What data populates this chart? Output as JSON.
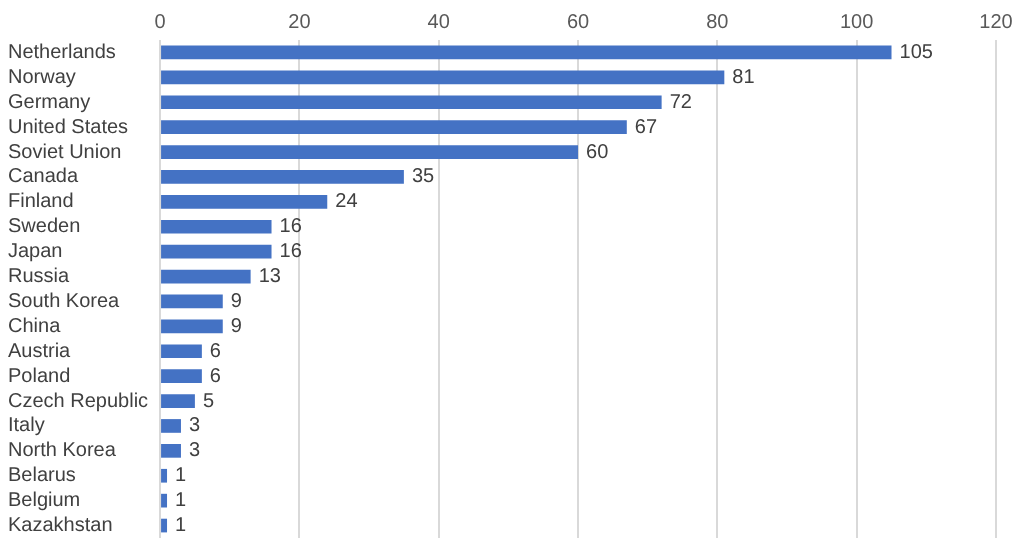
{
  "chart_data": {
    "type": "bar",
    "orientation": "horizontal",
    "categories": [
      "Netherlands",
      "Norway",
      "Germany",
      "United States",
      "Soviet Union",
      "Canada",
      "Finland",
      "Sweden",
      "Japan",
      "Russia",
      "South Korea",
      "China",
      "Austria",
      "Poland",
      "Czech Republic",
      "Italy",
      "North Korea",
      "Belarus",
      "Belgium",
      "Kazakhstan"
    ],
    "values": [
      105,
      81,
      72,
      67,
      60,
      35,
      24,
      16,
      16,
      13,
      9,
      9,
      6,
      6,
      5,
      3,
      3,
      1,
      1,
      1
    ],
    "color": "#4472c4",
    "xlim": [
      0,
      120
    ],
    "xticks": [
      0,
      20,
      40,
      60,
      80,
      100,
      120
    ],
    "grid": "x",
    "data_labels": true
  }
}
